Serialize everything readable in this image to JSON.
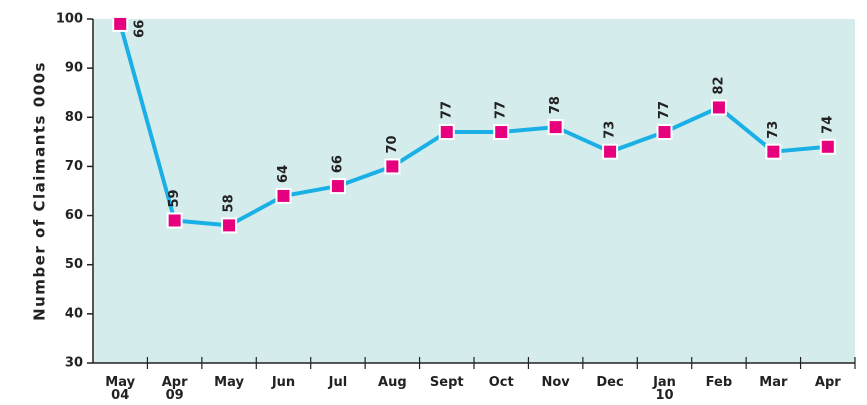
{
  "chart_data": {
    "type": "line",
    "y_axis_label": "Number of Claimants 000s",
    "categories": [
      "May\n04",
      "Apr\n09",
      "May",
      "Jun",
      "Jul",
      "Aug",
      "Sept",
      "Oct",
      "Nov",
      "Dec",
      "Jan\n10",
      "Feb",
      "Mar",
      "Apr"
    ],
    "series": [
      {
        "name": "Claimants",
        "color": "#1ab0e6",
        "marker_color": "#e6007e",
        "values": [
          99,
          59,
          58,
          64,
          66,
          70,
          77,
          77,
          78,
          73,
          77,
          82,
          73,
          74
        ]
      }
    ],
    "ylim": [
      30,
      100
    ],
    "yticks": [
      30,
      40,
      50,
      60,
      70,
      80,
      90,
      100
    ],
    "background": "#d5ecec"
  }
}
